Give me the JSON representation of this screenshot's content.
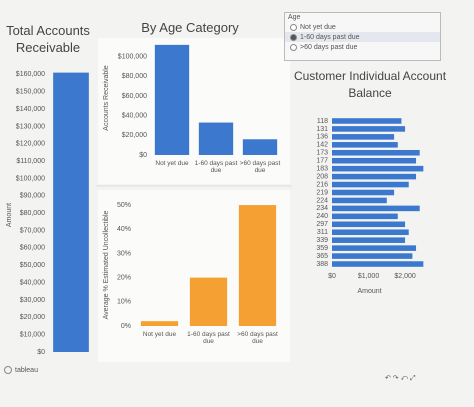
{
  "chart_data": [
    {
      "type": "bar",
      "title": "Total Accounts Receivable",
      "y_label": "Amount",
      "color": "#3d78cf",
      "categories": [
        null
      ],
      "values": [
        161000
      ],
      "ylim": [
        0,
        170000
      ],
      "yticks": [
        {
          "value": 0,
          "label": "$0"
        },
        {
          "value": 10000,
          "label": "$10,000"
        },
        {
          "value": 20000,
          "label": "$20,000"
        },
        {
          "value": 30000,
          "label": "$30,000"
        },
        {
          "value": 40000,
          "label": "$40,000"
        },
        {
          "value": 50000,
          "label": "$50,000"
        },
        {
          "value": 60000,
          "label": "$60,000"
        },
        {
          "value": 70000,
          "label": "$70,000"
        },
        {
          "value": 80000,
          "label": "$80,000"
        },
        {
          "value": 90000,
          "label": "$90,000"
        },
        {
          "value": 100000,
          "label": "$100,000"
        },
        {
          "value": 110000,
          "label": "$110,000"
        },
        {
          "value": 120000,
          "label": "$120,000"
        },
        {
          "value": 130000,
          "label": "$130,000"
        },
        {
          "value": 140000,
          "label": "$140,000"
        },
        {
          "value": 150000,
          "label": "$150,000"
        },
        {
          "value": 160000,
          "label": "$160,000"
        }
      ]
    },
    {
      "type": "bar",
      "title": "By Age Category",
      "y_label": "Accounts Receivable",
      "color": "#3d78cf",
      "categories": [
        "Not yet due",
        "1-60 days past due",
        ">60 days past due"
      ],
      "values": [
        112000,
        33000,
        16000
      ],
      "ylim": [
        0,
        120000
      ],
      "yticks": [
        {
          "value": 0,
          "label": "$0"
        },
        {
          "value": 20000,
          "label": "$20,000"
        },
        {
          "value": 40000,
          "label": "$40,000"
        },
        {
          "value": 60000,
          "label": "$60,000"
        },
        {
          "value": 80000,
          "label": "$80,000"
        },
        {
          "value": 100000,
          "label": "$100,000"
        }
      ]
    },
    {
      "type": "bar",
      "y_label": "Average % Estimated Uncollectible",
      "color": "#f5a033",
      "categories": [
        "Not yet due",
        "1-60 days past due",
        ">60 days past due"
      ],
      "values": [
        2,
        20,
        50
      ],
      "ylim": [
        0,
        55
      ],
      "yticks": [
        {
          "value": 0,
          "label": "0%"
        },
        {
          "value": 10,
          "label": "10%"
        },
        {
          "value": 20,
          "label": "20%"
        },
        {
          "value": 30,
          "label": "30%"
        },
        {
          "value": 40,
          "label": "40%"
        },
        {
          "value": 50,
          "label": "50%"
        }
      ]
    },
    {
      "type": "hbar",
      "title": "Customer Individual Account Balance",
      "x_label": "Amount",
      "color": "#3d78cf",
      "categories": [
        "118",
        "131",
        "136",
        "142",
        "173",
        "177",
        "183",
        "208",
        "216",
        "219",
        "224",
        "234",
        "240",
        "297",
        "311",
        "339",
        "359",
        "365",
        "388"
      ],
      "values": [
        1900,
        2000,
        1700,
        1800,
        2400,
        2300,
        2500,
        2300,
        2100,
        1700,
        1500,
        2400,
        1800,
        2000,
        2100,
        2000,
        2300,
        2200,
        2500
      ],
      "xlim": [
        0,
        2600
      ],
      "xticks": [
        {
          "value": 0,
          "label": "$0"
        },
        {
          "value": 1000,
          "label": "$1,000"
        },
        {
          "value": 2000,
          "label": "$2,000"
        }
      ]
    }
  ],
  "legend": {
    "title": "Age",
    "items": [
      "Not yet due",
      "1-60 days past due",
      ">60 days past due"
    ]
  },
  "footer": "tableau"
}
